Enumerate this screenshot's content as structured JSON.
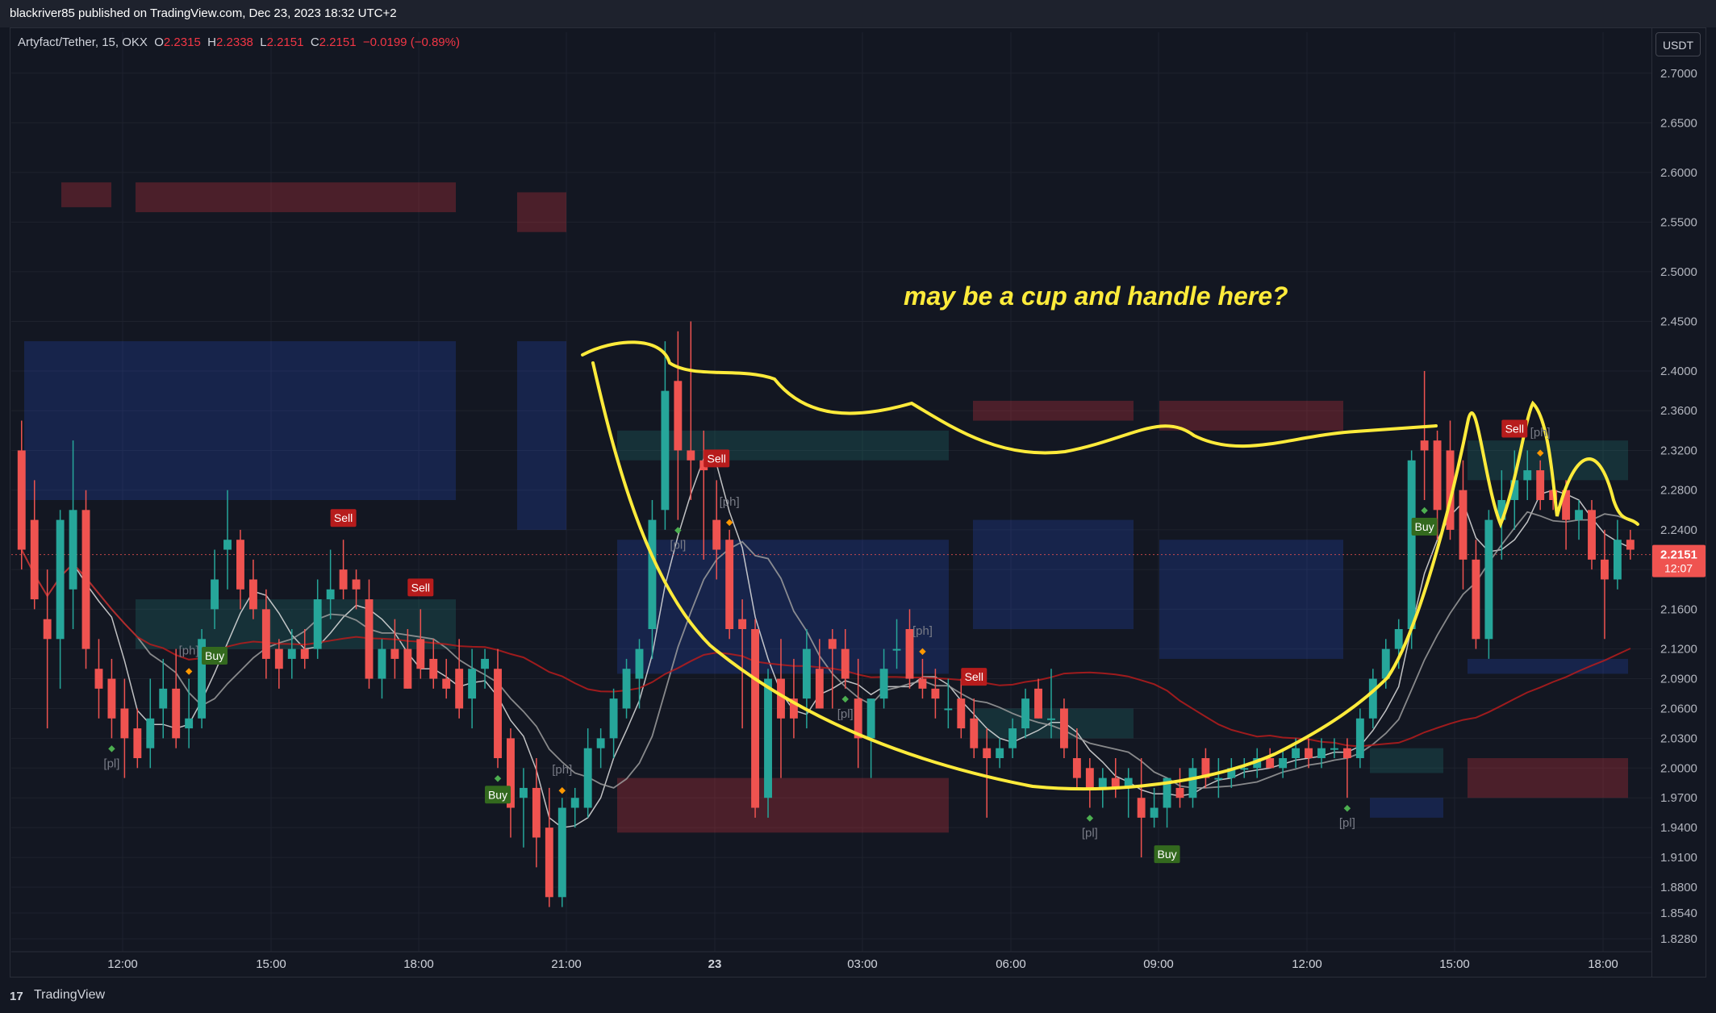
{
  "header": {
    "published": "blackriver85 published on TradingView.com, Dec 23, 2023 18:32 UTC+2"
  },
  "legend": {
    "symbol": "Artyfact/Tether, 15, OKX",
    "o_label": "O",
    "o": "2.2315",
    "h_label": "H",
    "h": "2.2338",
    "l_label": "L",
    "l": "2.2151",
    "c_label": "C",
    "c": "2.2151",
    "change": "−0.0199 (−0.89%)"
  },
  "axis": {
    "currency": "USDT",
    "last_price": "2.2151",
    "countdown": "12:07"
  },
  "annotation": "may be a cup and handle here?",
  "footer": {
    "brand": "TradingView"
  },
  "colors": {
    "up": "#26a69a",
    "down": "#ef5350",
    "ma_red": "#b71c1c",
    "ma_grey": "#b2b5be",
    "cup": "#ffeb3b",
    "bg": "#131722",
    "grid": "#1e222d"
  },
  "chart_data": {
    "type": "candlestick",
    "ylim": [
      1.815,
      2.725
    ],
    "y_ticks": [
      "2.7000",
      "2.6500",
      "2.6000",
      "2.5500",
      "2.5000",
      "2.4500",
      "2.4000",
      "2.3600",
      "2.3200",
      "2.2800",
      "2.2400",
      "2.2000",
      "2.1600",
      "2.1200",
      "2.0900",
      "2.0600",
      "2.0300",
      "2.0000",
      "1.9700",
      "1.9400",
      "1.9100",
      "1.8800",
      "1.8540",
      "1.8280"
    ],
    "x_ticks": [
      "12:00",
      "15:00",
      "18:00",
      "21:00",
      "23",
      "03:00",
      "06:00",
      "09:00",
      "12:00",
      "15:00",
      "18:00"
    ],
    "candles": [
      [
        2.32,
        2.35,
        2.2,
        2.22
      ],
      [
        2.25,
        2.29,
        2.16,
        2.17
      ],
      [
        2.15,
        2.2,
        2.04,
        2.13
      ],
      [
        2.13,
        2.26,
        2.08,
        2.25
      ],
      [
        2.18,
        2.33,
        2.14,
        2.26
      ],
      [
        2.26,
        2.28,
        2.1,
        2.12
      ],
      [
        2.1,
        2.13,
        2.05,
        2.08
      ],
      [
        2.09,
        2.11,
        2.03,
        2.05
      ],
      [
        2.06,
        2.09,
        1.99,
        2.03
      ],
      [
        2.04,
        2.06,
        2.0,
        2.01
      ],
      [
        2.02,
        2.09,
        2.0,
        2.05
      ],
      [
        2.06,
        2.11,
        2.03,
        2.08
      ],
      [
        2.08,
        2.12,
        2.02,
        2.03
      ],
      [
        2.04,
        2.09,
        2.02,
        2.05
      ],
      [
        2.05,
        2.14,
        2.04,
        2.13
      ],
      [
        2.16,
        2.22,
        2.14,
        2.19
      ],
      [
        2.22,
        2.28,
        2.18,
        2.23
      ],
      [
        2.23,
        2.24,
        2.16,
        2.18
      ],
      [
        2.19,
        2.21,
        2.15,
        2.16
      ],
      [
        2.16,
        2.18,
        2.09,
        2.11
      ],
      [
        2.12,
        2.13,
        2.08,
        2.1
      ],
      [
        2.11,
        2.14,
        2.09,
        2.12
      ],
      [
        2.12,
        2.14,
        2.1,
        2.11
      ],
      [
        2.12,
        2.19,
        2.11,
        2.17
      ],
      [
        2.17,
        2.22,
        2.15,
        2.18
      ],
      [
        2.2,
        2.23,
        2.17,
        2.18
      ],
      [
        2.19,
        2.2,
        2.16,
        2.18
      ],
      [
        2.17,
        2.19,
        2.08,
        2.09
      ],
      [
        2.09,
        2.13,
        2.07,
        2.12
      ],
      [
        2.12,
        2.15,
        2.09,
        2.11
      ],
      [
        2.12,
        2.14,
        2.08,
        2.08
      ],
      [
        2.13,
        2.16,
        2.09,
        2.1
      ],
      [
        2.11,
        2.13,
        2.08,
        2.09
      ],
      [
        2.09,
        2.11,
        2.07,
        2.08
      ],
      [
        2.1,
        2.13,
        2.05,
        2.06
      ],
      [
        2.07,
        2.12,
        2.04,
        2.1
      ],
      [
        2.1,
        2.12,
        2.08,
        2.11
      ],
      [
        2.1,
        2.12,
        2.0,
        2.01
      ],
      [
        2.03,
        2.04,
        1.93,
        1.96
      ],
      [
        1.97,
        2.0,
        1.92,
        1.98
      ],
      [
        1.98,
        2.01,
        1.9,
        1.93
      ],
      [
        1.94,
        1.98,
        1.86,
        1.87
      ],
      [
        1.87,
        1.97,
        1.86,
        1.96
      ],
      [
        1.96,
        1.98,
        1.94,
        1.97
      ],
      [
        1.96,
        2.04,
        1.95,
        2.02
      ],
      [
        2.02,
        2.04,
        2.0,
        2.03
      ],
      [
        2.03,
        2.08,
        2.01,
        2.07
      ],
      [
        2.06,
        2.11,
        2.05,
        2.1
      ],
      [
        2.09,
        2.13,
        2.06,
        2.12
      ],
      [
        2.14,
        2.27,
        2.11,
        2.25
      ],
      [
        2.26,
        2.43,
        2.24,
        2.38
      ],
      [
        2.39,
        2.44,
        2.25,
        2.32
      ],
      [
        2.32,
        2.45,
        2.27,
        2.31
      ],
      [
        2.31,
        2.34,
        2.21,
        2.3
      ],
      [
        2.25,
        2.29,
        2.19,
        2.22
      ],
      [
        2.23,
        2.24,
        2.13,
        2.14
      ],
      [
        2.15,
        2.17,
        2.04,
        2.14
      ],
      [
        2.14,
        2.15,
        1.95,
        1.96
      ],
      [
        1.97,
        2.1,
        1.95,
        2.09
      ],
      [
        2.09,
        2.13,
        1.99,
        2.05
      ],
      [
        2.07,
        2.11,
        2.03,
        2.05
      ],
      [
        2.07,
        2.14,
        2.04,
        2.12
      ],
      [
        2.1,
        2.13,
        2.06,
        2.06
      ],
      [
        2.13,
        2.14,
        2.06,
        2.12
      ],
      [
        2.12,
        2.14,
        2.08,
        2.09
      ],
      [
        2.07,
        2.11,
        2.0,
        2.03
      ],
      [
        2.03,
        2.07,
        1.99,
        2.07
      ],
      [
        2.07,
        2.12,
        2.06,
        2.1
      ],
      [
        2.12,
        2.15,
        2.1,
        2.12
      ],
      [
        2.14,
        2.16,
        2.08,
        2.09
      ],
      [
        2.09,
        2.11,
        2.07,
        2.08
      ],
      [
        2.08,
        2.1,
        2.05,
        2.07
      ],
      [
        2.06,
        2.09,
        2.04,
        2.06
      ],
      [
        2.07,
        2.09,
        2.03,
        2.04
      ],
      [
        2.05,
        2.07,
        2.01,
        2.02
      ],
      [
        2.02,
        2.04,
        1.95,
        2.01
      ],
      [
        2.01,
        2.03,
        2.0,
        2.02
      ],
      [
        2.02,
        2.05,
        2.01,
        2.04
      ],
      [
        2.04,
        2.08,
        2.03,
        2.07
      ],
      [
        2.08,
        2.09,
        2.05,
        2.05
      ],
      [
        2.05,
        2.1,
        2.03,
        2.05
      ],
      [
        2.06,
        2.07,
        2.01,
        2.02
      ],
      [
        2.01,
        2.04,
        1.98,
        1.99
      ],
      [
        2.0,
        2.01,
        1.96,
        1.98
      ],
      [
        1.98,
        2.0,
        1.96,
        1.99
      ],
      [
        1.99,
        2.01,
        1.97,
        1.98
      ],
      [
        1.98,
        2.0,
        1.95,
        1.99
      ],
      [
        1.97,
        2.01,
        1.91,
        1.95
      ],
      [
        1.95,
        1.98,
        1.94,
        1.96
      ],
      [
        1.96,
        1.99,
        1.94,
        1.99
      ],
      [
        1.98,
        2.0,
        1.96,
        1.97
      ],
      [
        1.97,
        2.01,
        1.96,
        2.0
      ],
      [
        2.01,
        2.02,
        1.98,
        1.99
      ],
      [
        1.99,
        2.01,
        1.97,
        1.99
      ],
      [
        1.99,
        2.01,
        1.98,
        2.0
      ],
      [
        2.0,
        2.01,
        1.99,
        2.0
      ],
      [
        2.0,
        2.02,
        1.99,
        2.01
      ],
      [
        2.01,
        2.02,
        2.0,
        2.0
      ],
      [
        2.0,
        2.02,
        1.99,
        2.01
      ],
      [
        2.01,
        2.03,
        2.0,
        2.02
      ],
      [
        2.02,
        2.03,
        2.0,
        2.01
      ],
      [
        2.01,
        2.03,
        2.0,
        2.02
      ],
      [
        2.02,
        2.03,
        2.01,
        2.02
      ],
      [
        2.02,
        2.03,
        1.97,
        2.01
      ],
      [
        2.01,
        2.06,
        2.0,
        2.05
      ],
      [
        2.05,
        2.1,
        2.04,
        2.09
      ],
      [
        2.09,
        2.13,
        2.08,
        2.12
      ],
      [
        2.12,
        2.15,
        2.1,
        2.14
      ],
      [
        2.14,
        2.32,
        2.12,
        2.31
      ],
      [
        2.33,
        2.4,
        2.27,
        2.32
      ],
      [
        2.33,
        2.34,
        2.23,
        2.26
      ],
      [
        2.32,
        2.35,
        2.23,
        2.24
      ],
      [
        2.28,
        2.31,
        2.18,
        2.21
      ],
      [
        2.21,
        2.23,
        2.12,
        2.13
      ],
      [
        2.13,
        2.26,
        2.11,
        2.25
      ],
      [
        2.25,
        2.3,
        2.21,
        2.27
      ],
      [
        2.27,
        2.32,
        2.24,
        2.29
      ],
      [
        2.29,
        2.32,
        2.27,
        2.3
      ],
      [
        2.3,
        2.31,
        2.26,
        2.27
      ],
      [
        2.28,
        2.29,
        2.26,
        2.27
      ],
      [
        2.28,
        2.29,
        2.22,
        2.25
      ],
      [
        2.25,
        2.27,
        2.23,
        2.26
      ],
      [
        2.26,
        2.27,
        2.2,
        2.21
      ],
      [
        2.21,
        2.24,
        2.13,
        2.19
      ],
      [
        2.19,
        2.25,
        2.18,
        2.23
      ],
      [
        2.23,
        2.24,
        2.21,
        2.22
      ]
    ],
    "pivot_labels": [
      {
        "text": "[pl]",
        "type": "low"
      },
      {
        "text": "[ph]",
        "type": "high"
      },
      {
        "text": "[pl]",
        "type": "low"
      },
      {
        "text": "[ph]",
        "type": "high"
      },
      {
        "text": "[pl]",
        "type": "low"
      },
      {
        "text": "[ph]",
        "type": "high"
      },
      {
        "text": "[pl]",
        "type": "low"
      },
      {
        "text": "[ph]",
        "type": "high"
      },
      {
        "text": "[pl]",
        "type": "low"
      },
      {
        "text": "[pl]",
        "type": "low"
      },
      {
        "text": "[ph]",
        "type": "high"
      },
      {
        "text": "[pl]",
        "type": "low"
      }
    ],
    "signals": [
      {
        "text": "Buy",
        "side": "buy"
      },
      {
        "text": "Sell",
        "side": "sell"
      },
      {
        "text": "Sell",
        "side": "sell"
      },
      {
        "text": "Buy",
        "side": "buy"
      },
      {
        "text": "Sell",
        "side": "sell"
      },
      {
        "text": "Buy",
        "side": "buy"
      },
      {
        "text": "Sell",
        "side": "sell"
      },
      {
        "text": "Buy",
        "side": "buy"
      },
      {
        "text": "Sell",
        "side": "sell"
      }
    ]
  }
}
